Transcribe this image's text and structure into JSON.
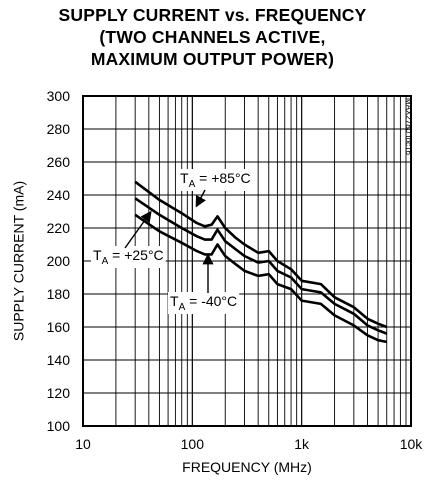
{
  "chart_data": {
    "type": "line",
    "title": [
      "SUPPLY CURRENT vs. FREQUENCY",
      "(TWO CHANNELS ACTIVE,",
      "MAXIMUM OUTPUT POWER)"
    ],
    "xlabel": "FREQUENCY (MHz)",
    "ylabel": "SUPPLY CURRENT (mA)",
    "x_scale": "log",
    "xlim": [
      10,
      10000
    ],
    "ylim": [
      100,
      300
    ],
    "x_ticks": [
      {
        "value": 10,
        "label": "10"
      },
      {
        "value": 100,
        "label": "100"
      },
      {
        "value": 1000,
        "label": "1k"
      },
      {
        "value": 10000,
        "label": "10k"
      }
    ],
    "y_ticks": [
      100,
      120,
      140,
      160,
      180,
      200,
      220,
      240,
      260,
      280,
      300
    ],
    "grid": true,
    "code_label": "MAX2780 toc16",
    "annotations": [
      {
        "prefix": "T",
        "sub": "A",
        "text": " = +85°C"
      },
      {
        "prefix": "T",
        "sub": "A",
        "text": " = +25°C"
      },
      {
        "prefix": "T",
        "sub": "A",
        "text": " = -40°C"
      }
    ],
    "series": [
      {
        "x": [
          30,
          50,
          80,
          110,
          130,
          150,
          170,
          200,
          250,
          300,
          400,
          500,
          600,
          800,
          1000,
          1500,
          2000,
          3000,
          4000,
          5000,
          6000
        ],
        "y": [
          248,
          237,
          229,
          223,
          221,
          222,
          227,
          220,
          214,
          210,
          205,
          206,
          200,
          195,
          188,
          186,
          178,
          172,
          165,
          162,
          160
        ]
      },
      {
        "x": [
          30,
          50,
          80,
          110,
          130,
          150,
          170,
          200,
          250,
          300,
          400,
          500,
          600,
          800,
          1000,
          1500,
          2000,
          3000,
          4000,
          5000,
          6000
        ],
        "y": [
          238,
          228,
          220,
          215,
          213,
          213,
          219,
          212,
          207,
          203,
          199,
          200,
          194,
          190,
          183,
          181,
          174,
          168,
          161,
          158,
          156
        ]
      },
      {
        "x": [
          30,
          50,
          80,
          110,
          130,
          150,
          170,
          200,
          250,
          300,
          400,
          500,
          600,
          800,
          1000,
          1500,
          2000,
          3000,
          4000,
          5000,
          6000
        ],
        "y": [
          228,
          218,
          211,
          206,
          204,
          204,
          210,
          203,
          198,
          194,
          191,
          192,
          186,
          183,
          176,
          174,
          167,
          161,
          155,
          152,
          151
        ]
      }
    ]
  }
}
